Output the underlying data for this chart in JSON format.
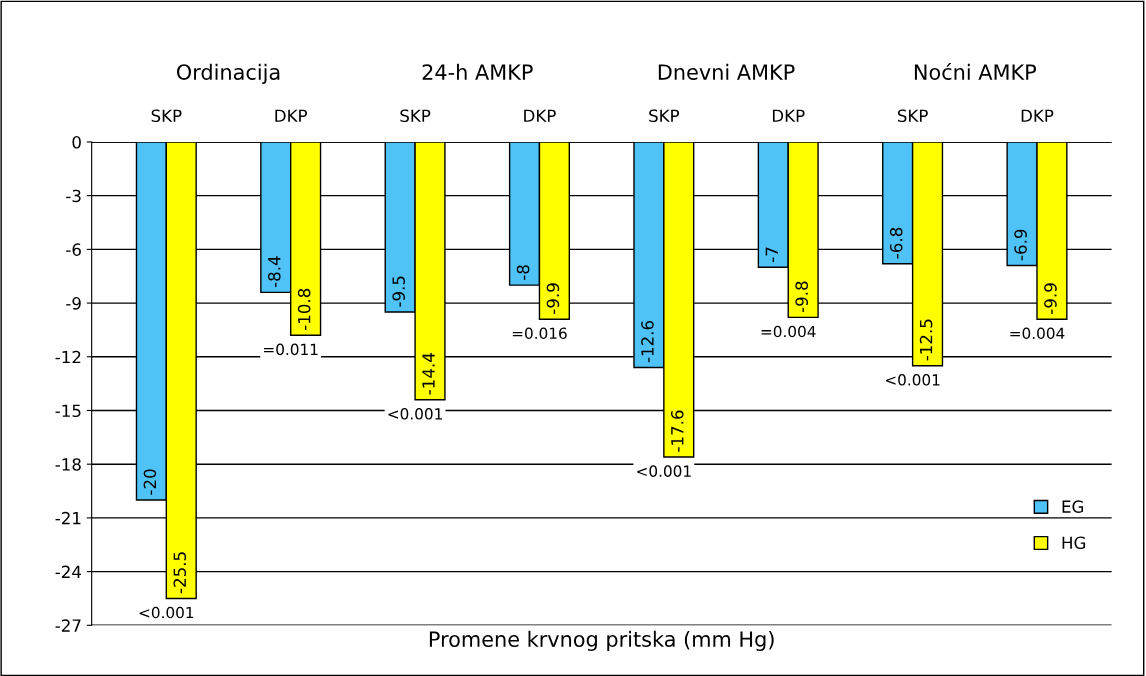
{
  "chart_data": {
    "type": "bar",
    "xlabel": "Promene krvnog pritska (mm Hg)",
    "categories": [
      "SKP",
      "DKP",
      "SKP",
      "DKP",
      "SKP",
      "DKP",
      "SKP",
      "DKP"
    ],
    "series": [
      {
        "name": "EG",
        "color": "#4fc3f7",
        "values": [
          -20,
          -8.4,
          -9.5,
          -8,
          -12.6,
          -7,
          -6.8,
          -6.9
        ]
      },
      {
        "name": "HG",
        "color": "#ffff00",
        "values": [
          -25.5,
          -10.8,
          -14.4,
          -9.9,
          -17.6,
          -9.8,
          -12.5,
          -9.9
        ]
      }
    ],
    "data_labels": true,
    "ylim": [
      -27,
      0
    ],
    "yticks": [
      0,
      -3,
      -6,
      -9,
      -12,
      -15,
      -18,
      -21,
      -24,
      -27
    ],
    "grid": "y",
    "legend": "bottom right",
    "annotations": [
      "Ordinacija",
      "24-h AMKP",
      "Dnevni AMKP",
      "Noćni AMKP",
      {
        "text": "<0.001",
        "y": -25.5
      },
      {
        "text": "=0.011",
        "y": -10.8
      },
      {
        "text": "<0.001",
        "y": -14.4
      },
      {
        "text": "=0.016",
        "y": -9.9
      },
      {
        "text": "<0.001",
        "y": -17.6
      },
      {
        "text": "=0.004",
        "y": -9.8
      },
      {
        "text": "<0.001",
        "y": -12.5
      },
      {
        "text": "=0.004",
        "y": -9.9
      }
    ]
  }
}
